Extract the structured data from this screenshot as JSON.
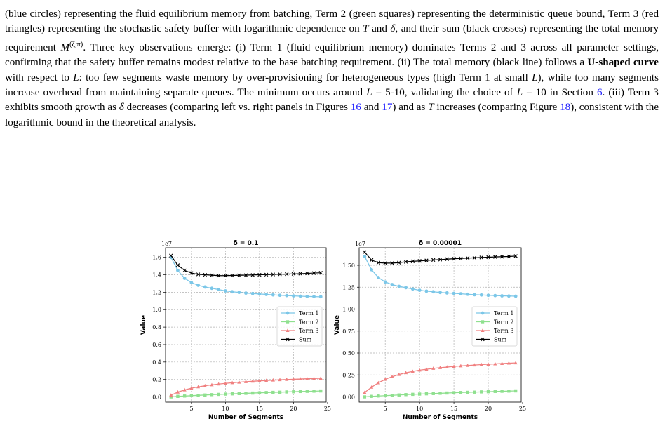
{
  "paragraph": {
    "p1": "(blue circles) representing the fluid equilibrium memory from batching, Term 2 (green squares) representing the deterministic queue bound, Term 3 (red triangles) representing the stochastic safety buffer with logarithmic dependence on ",
    "T1": "T",
    "p2": " and ",
    "d1": "δ",
    "p3": ", and their sum (black crosses) representing the total memory requirement ",
    "M": "M",
    "Msup": "(ζ,π)",
    "p4": ". Three key observations emerge: (i) Term 1 (fluid equilibrium memory) dominates Terms 2 and 3 across all parameter settings, confirming that the safety buffer remains modest relative to the base batching requirement. (ii) The total memory (black line) follows a ",
    "bold": "U-shaped curve",
    "p5": " with respect to ",
    "L1": "L",
    "p6": ": too few segments waste memory by over-provisioning for heterogeneous types (high Term 1 at small ",
    "L2": "L",
    "p7": "), while too many segments increase overhead from maintaining separate queues. The minimum occurs around ",
    "L3": "L",
    "p8": " = 5-10, validating the choice of ",
    "L4": "L",
    "p9": " = 10 in Section ",
    "ref_section": "6",
    "p10": ". (iii) Term 3 exhibits smooth growth as ",
    "d2": "δ",
    "p11": " decreases (comparing left vs.  right panels in Figures ",
    "ref_fig1": "16",
    "p12": " and ",
    "ref_fig2": "17",
    "p13": ") and as ",
    "T2": "T",
    "p14": " increases (comparing Figure ",
    "ref_fig3": "18",
    "p15": "), consistent with the logarithmic bound in the theoretical analysis."
  },
  "colors": {
    "term1": "#7cc7e8",
    "term2": "#8fe08f",
    "term3": "#f08080",
    "sum": "#000000",
    "link": "#1a1aff"
  },
  "chart_data": [
    {
      "type": "line",
      "title": "δ = 0.1",
      "xlabel": "Number of Segments",
      "ylabel": "Value",
      "offset_label": "1e7",
      "xlim": [
        1.2,
        24.8
      ],
      "ylim": [
        -0.06,
        1.71
      ],
      "xticks": [
        5,
        10,
        15,
        20,
        25
      ],
      "yticks": [
        0.0,
        0.2,
        0.4,
        0.6,
        0.8,
        1.0,
        1.2,
        1.4,
        1.6
      ],
      "ytick_labels": [
        "0.0",
        "0.2",
        "0.4",
        "0.6",
        "0.8",
        "1.0",
        "1.2",
        "1.4",
        "1.6"
      ],
      "legend_position": "center-right",
      "grid": true,
      "x": [
        2,
        3,
        4,
        5,
        6,
        7,
        8,
        9,
        10,
        11,
        12,
        13,
        14,
        15,
        16,
        17,
        18,
        19,
        20,
        21,
        22,
        23,
        24
      ],
      "series": [
        {
          "name": "Term 1",
          "marker": "circle",
          "values": [
            1.6,
            1.45,
            1.36,
            1.31,
            1.28,
            1.26,
            1.245,
            1.23,
            1.215,
            1.205,
            1.198,
            1.19,
            1.185,
            1.18,
            1.175,
            1.17,
            1.165,
            1.162,
            1.158,
            1.155,
            1.152,
            1.15,
            1.148
          ]
        },
        {
          "name": "Term 2",
          "marker": "square",
          "values": [
            0.0,
            0.006,
            0.01,
            0.014,
            0.018,
            0.022,
            0.026,
            0.029,
            0.032,
            0.035,
            0.038,
            0.041,
            0.044,
            0.047,
            0.05,
            0.052,
            0.054,
            0.057,
            0.059,
            0.062,
            0.064,
            0.066,
            0.068
          ]
        },
        {
          "name": "Term 3",
          "marker": "triangle",
          "values": [
            0.02,
            0.055,
            0.08,
            0.1,
            0.115,
            0.128,
            0.138,
            0.147,
            0.155,
            0.162,
            0.168,
            0.174,
            0.179,
            0.184,
            0.188,
            0.192,
            0.196,
            0.199,
            0.202,
            0.205,
            0.208,
            0.211,
            0.214
          ]
        },
        {
          "name": "Sum",
          "marker": "x",
          "values": [
            1.62,
            1.51,
            1.45,
            1.42,
            1.405,
            1.4,
            1.395,
            1.39,
            1.39,
            1.392,
            1.394,
            1.396,
            1.398,
            1.4,
            1.402,
            1.404,
            1.406,
            1.408,
            1.41,
            1.413,
            1.416,
            1.42,
            1.423
          ]
        }
      ]
    },
    {
      "type": "line",
      "title": "δ = 0.00001",
      "xlabel": "Number of Segments",
      "ylabel": "Value",
      "offset_label": "1e7",
      "xlim": [
        1.2,
        24.8
      ],
      "ylim": [
        -0.06,
        1.7
      ],
      "xticks": [
        5,
        10,
        15,
        20,
        25
      ],
      "yticks": [
        0.0,
        0.25,
        0.5,
        0.75,
        1.0,
        1.25,
        1.5
      ],
      "ytick_labels": [
        "0.00",
        "0.25",
        "0.50",
        "0.75",
        "1.00",
        "1.25",
        "1.50"
      ],
      "legend_position": "center-right",
      "grid": true,
      "x": [
        2,
        3,
        4,
        5,
        6,
        7,
        8,
        9,
        10,
        11,
        12,
        13,
        14,
        15,
        16,
        17,
        18,
        19,
        20,
        21,
        22,
        23,
        24
      ],
      "series": [
        {
          "name": "Term 1",
          "marker": "circle",
          "values": [
            1.6,
            1.45,
            1.36,
            1.31,
            1.28,
            1.26,
            1.245,
            1.23,
            1.215,
            1.205,
            1.198,
            1.19,
            1.185,
            1.18,
            1.175,
            1.17,
            1.165,
            1.162,
            1.158,
            1.155,
            1.152,
            1.15,
            1.148
          ]
        },
        {
          "name": "Term 2",
          "marker": "square",
          "values": [
            0.0,
            0.006,
            0.01,
            0.014,
            0.018,
            0.022,
            0.026,
            0.029,
            0.032,
            0.035,
            0.038,
            0.041,
            0.044,
            0.047,
            0.05,
            0.052,
            0.054,
            0.057,
            0.059,
            0.062,
            0.064,
            0.066,
            0.068
          ]
        },
        {
          "name": "Term 3",
          "marker": "triangle",
          "values": [
            0.05,
            0.11,
            0.16,
            0.2,
            0.23,
            0.255,
            0.275,
            0.29,
            0.305,
            0.315,
            0.325,
            0.333,
            0.34,
            0.347,
            0.353,
            0.358,
            0.363,
            0.368,
            0.372,
            0.376,
            0.38,
            0.384,
            0.387
          ]
        },
        {
          "name": "Sum",
          "marker": "x",
          "values": [
            1.65,
            1.56,
            1.53,
            1.525,
            1.525,
            1.53,
            1.54,
            1.545,
            1.55,
            1.555,
            1.561,
            1.565,
            1.57,
            1.575,
            1.578,
            1.582,
            1.585,
            1.589,
            1.592,
            1.595,
            1.598,
            1.6,
            1.605
          ]
        }
      ]
    }
  ]
}
